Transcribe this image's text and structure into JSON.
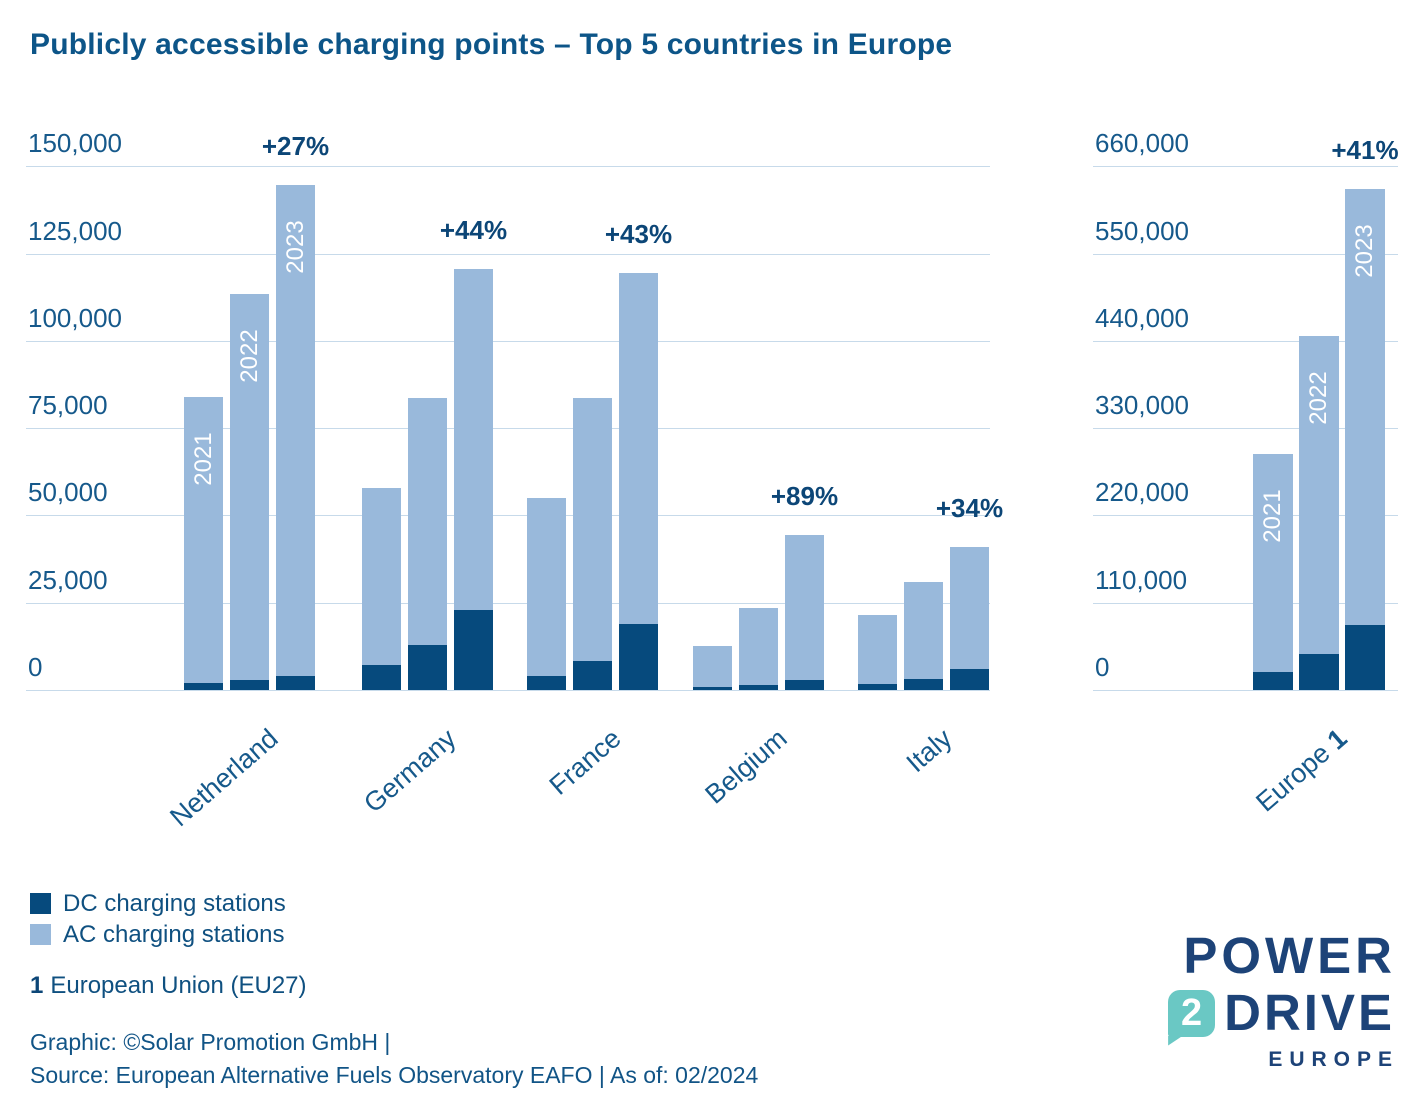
{
  "title": "Publicly accessible charging points – Top 5 countries in Europe",
  "legend": {
    "dc_label": "DC charging stations",
    "ac_label": "AC charging stations"
  },
  "footnote": {
    "marker": "1",
    "text": "European Union (EU27)"
  },
  "credits": {
    "line1": "Graphic: ©Solar Promotion GmbH |",
    "line2": "Source: European Alternative Fuels Observatory EAFO | As of: 02/2024"
  },
  "logo": {
    "line1": "POWER",
    "bubble": "2",
    "line2": "DRIVE",
    "line3": "EUROPE"
  },
  "colors": {
    "ac": "#99B9DB",
    "dc": "#064A7D",
    "gridline": "#C7DAEA",
    "axis_label": "#16598B",
    "growth_label": "#0C4677",
    "title": "#0D5588",
    "logo_navy": "#1D4378",
    "logo_teal": "#6AC8C4"
  },
  "chart_data": [
    {
      "type": "bar",
      "subtype": "grouped-stacked",
      "title": "Top 5 countries",
      "categories": [
        "Netherland",
        "Germany",
        "France",
        "Belgium",
        "Italy"
      ],
      "years": [
        "2021",
        "2022",
        "2023"
      ],
      "ylim": [
        0,
        150000
      ],
      "yticks": {
        "labels": [
          "150,000",
          "125,000",
          "100,000",
          "75,000",
          "50,000",
          "25,000",
          "0"
        ],
        "values": [
          150000,
          125000,
          100000,
          75000,
          50000,
          25000,
          0
        ]
      },
      "grid": true,
      "series": [
        {
          "name": "DC charging stations",
          "values": {
            "Netherland": [
              2000,
              2900,
              4100
            ],
            "Germany": [
              7200,
              12800,
              23000
            ],
            "France": [
              4000,
              8400,
              19000
            ],
            "Belgium": [
              950,
              1450,
              2900
            ],
            "Italy": [
              1650,
              3250,
              5950
            ]
          }
        },
        {
          "name": "AC charging stations",
          "values": {
            "Netherland": [
              82000,
              110600,
              140400
            ],
            "Germany": [
              50800,
              70700,
              97500
            ],
            "France": [
              51000,
              75100,
              100500
            ],
            "Belgium": [
              11650,
              22050,
              41600
            ],
            "Italy": [
              19850,
              27550,
              35050
            ]
          }
        }
      ],
      "totals": {
        "Netherland": [
          84000,
          113500,
          144500
        ],
        "Germany": [
          58000,
          83500,
          120500
        ],
        "France": [
          55000,
          83500,
          119500
        ],
        "Belgium": [
          12600,
          23500,
          44500
        ],
        "Italy": [
          21500,
          30800,
          41000
        ]
      },
      "growth_labels": [
        "+27%",
        "+44%",
        "+43%",
        "+89%",
        "+34%"
      ],
      "year_labels_on_category": "Netherland"
    },
    {
      "type": "bar",
      "subtype": "stacked",
      "title": "Europe (EU27)",
      "categories": [
        "Europe"
      ],
      "category_marker": "1",
      "years": [
        "2021",
        "2022",
        "2023"
      ],
      "ylim": [
        0,
        660000
      ],
      "yticks": {
        "labels": [
          "660,000",
          "550,000",
          "440,000",
          "330,000",
          "220,000",
          "110,000",
          "0"
        ],
        "values": [
          660000,
          550000,
          440000,
          330000,
          220000,
          110000,
          0
        ]
      },
      "grid": true,
      "series": [
        {
          "name": "DC charging stations",
          "values": {
            "Europe": [
              23000,
              45400,
              82000
            ]
          }
        },
        {
          "name": "AC charging stations",
          "values": {
            "Europe": [
              275000,
              400600,
              549000
            ]
          }
        }
      ],
      "totals": {
        "Europe": [
          298000,
          446000,
          631000
        ]
      },
      "growth_labels": [
        "+41%"
      ],
      "year_labels_on_category": "Europe"
    }
  ]
}
